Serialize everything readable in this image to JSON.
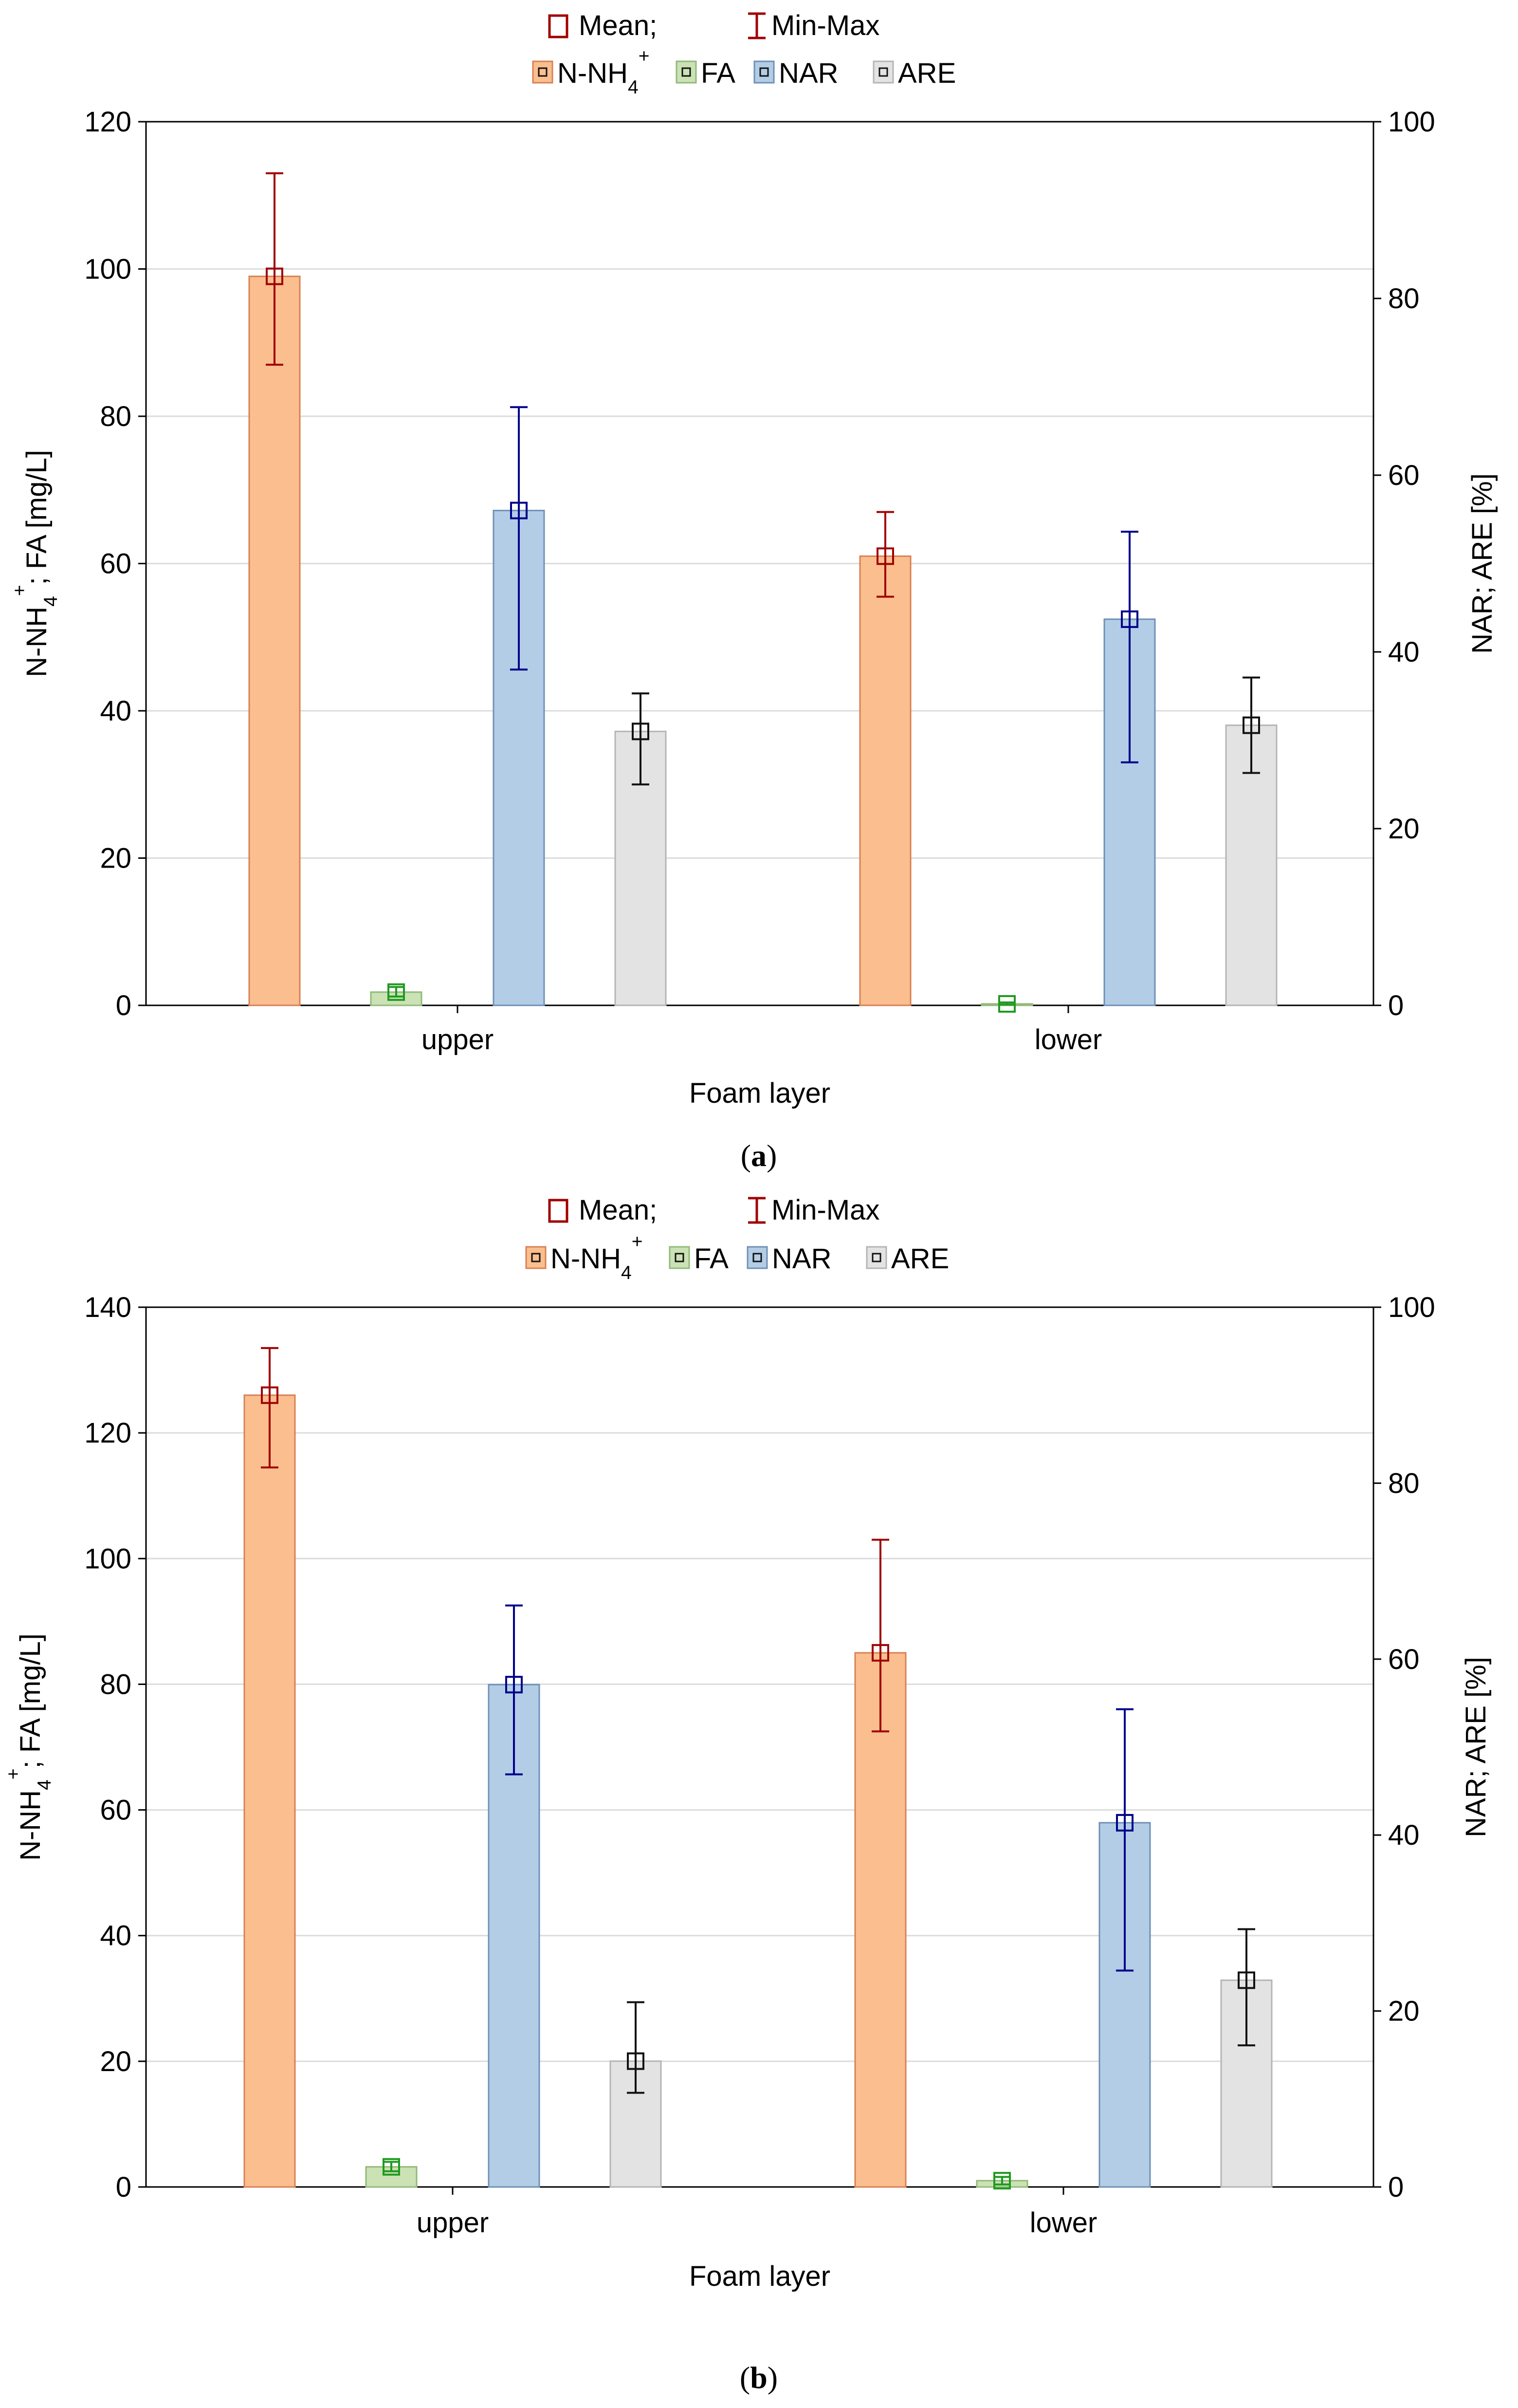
{
  "chart_data": [
    {
      "type": "bar",
      "panel_label": "a",
      "legend_stat": {
        "mean_label": "Mean;",
        "minmax_label": "Min-Max"
      },
      "legend_series": [
        "N-NH4+",
        "FA",
        "NAR",
        "ARE"
      ],
      "xlabel": "Foam layer",
      "ylabel_left": "N-NH4+; FA [mg/L]",
      "ylabel_right": "NAR; ARE [%]",
      "categories": [
        "upper",
        "lower"
      ],
      "ylim_left": [
        0,
        120
      ],
      "yticks_left": [
        0,
        20,
        40,
        60,
        80,
        100,
        120
      ],
      "ylim_right": [
        0,
        100
      ],
      "yticks_right": [
        0,
        20,
        40,
        60,
        80,
        100
      ],
      "grid": true,
      "series": [
        {
          "name": "N-NH4+",
          "axis": "left",
          "values": [
            99,
            61
          ],
          "min": [
            87,
            55.5
          ],
          "max": [
            113,
            67
          ]
        },
        {
          "name": "FA",
          "axis": "left",
          "values": [
            1.8,
            0.2
          ],
          "min": [
            1.2,
            0.1
          ],
          "max": [
            2.5,
            0.4
          ]
        },
        {
          "name": "NAR",
          "axis": "right",
          "values": [
            56,
            43.7
          ],
          "min": [
            38,
            27.5
          ],
          "max": [
            67.7,
            53.6
          ]
        },
        {
          "name": "ARE",
          "axis": "right",
          "values": [
            31,
            31.7
          ],
          "min": [
            25,
            26.3
          ],
          "max": [
            35.3,
            37.1
          ]
        }
      ]
    },
    {
      "type": "bar",
      "panel_label": "b",
      "legend_stat": {
        "mean_label": "Mean;",
        "minmax_label": "Min-Max"
      },
      "legend_series": [
        "N-NH4+",
        "FA",
        "NAR",
        "ARE"
      ],
      "xlabel": "Foam layer",
      "ylabel_left": "N-NH4+; FA [mg/L]",
      "ylabel_right": "NAR; ARE [%]",
      "categories": [
        "upper",
        "lower"
      ],
      "ylim_left": [
        0,
        140
      ],
      "yticks_left": [
        0,
        20,
        40,
        60,
        80,
        100,
        120,
        140
      ],
      "ylim_right": [
        0,
        100
      ],
      "yticks_right": [
        0,
        20,
        40,
        60,
        80,
        100
      ],
      "grid": true,
      "series": [
        {
          "name": "N-NH4+",
          "axis": "left",
          "values": [
            126,
            85
          ],
          "min": [
            114.5,
            72.5
          ],
          "max": [
            133.5,
            103
          ]
        },
        {
          "name": "FA",
          "axis": "left",
          "values": [
            3.2,
            1.0
          ],
          "min": [
            2.5,
            0.4
          ],
          "max": [
            4.0,
            1.6
          ]
        },
        {
          "name": "NAR",
          "axis": "right",
          "values": [
            57.1,
            41.4
          ],
          "min": [
            46.9,
            24.6
          ],
          "max": [
            66.1,
            54.3
          ]
        },
        {
          "name": "ARE",
          "axis": "right",
          "values": [
            14.3,
            23.5
          ],
          "min": [
            10.7,
            16.1
          ],
          "max": [
            21.0,
            29.3
          ]
        }
      ]
    }
  ],
  "colors": {
    "series_fill": [
      "#fbbe8f",
      "#cbe2b5",
      "#b3cde6",
      "#e3e3e3"
    ],
    "series_stroke": [
      "#d88154",
      "#92b97a",
      "#6f90b6",
      "#b5b5b5"
    ],
    "series_marker": [
      "#a00000",
      "#1f9a1f",
      "#00008b",
      "#111111"
    ],
    "grid": "#dcdcdc",
    "axis": "#000000"
  }
}
